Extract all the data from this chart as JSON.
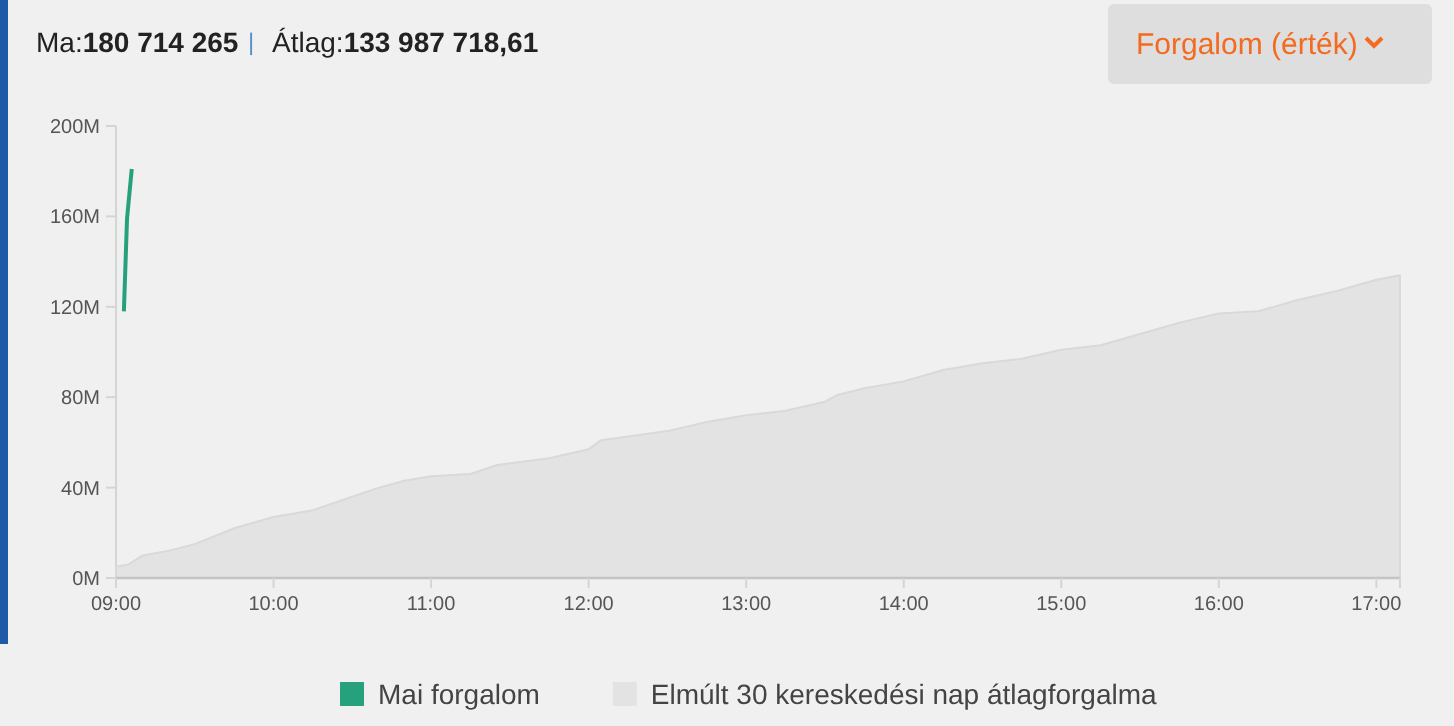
{
  "chart_data": {
    "type": "line",
    "annotations": [
      "Ma:180 714 265",
      "|",
      "Átlag:133 987 718,61",
      "Forgalom (érték)"
    ],
    "xlim": [
      9,
      17.15
    ],
    "xticks": [
      {
        "value": 9,
        "label": "09:00"
      },
      {
        "value": 10,
        "label": "10:00"
      },
      {
        "value": 11,
        "label": "11:00"
      },
      {
        "value": 12,
        "label": "12:00"
      },
      {
        "value": 13,
        "label": "13:00"
      },
      {
        "value": 14,
        "label": "14:00"
      },
      {
        "value": 15,
        "label": "15:00"
      },
      {
        "value": 16,
        "label": "16:00"
      },
      {
        "value": 17,
        "label": "17:00"
      },
      {
        "value": 17.15,
        "label": null
      }
    ],
    "ylim": [
      0,
      200
    ],
    "yticks": [
      {
        "value": 0,
        "label": "0M"
      },
      {
        "value": 40,
        "label": "40M"
      },
      {
        "value": 80,
        "label": "80M"
      },
      {
        "value": 120,
        "label": "120M"
      },
      {
        "value": 160,
        "label": "160M"
      },
      {
        "value": 200,
        "label": "200M"
      }
    ],
    "grid": false,
    "legend": "bottom",
    "marker": "none",
    "line_style": "solid",
    "series": [
      {
        "name": "Mai forgalom",
        "color": "#26a17b",
        "x": [
          9.05,
          9.07,
          9.1
        ],
        "values": [
          118,
          159,
          181
        ]
      },
      {
        "name": "Elmúlt 30 kereskedési nap átlagforgalma",
        "color": "#e3e3e3",
        "type": "area",
        "x": [
          9,
          9.08,
          9.17,
          9.33,
          9.5,
          9.75,
          10,
          10.25,
          10.5,
          10.67,
          10.83,
          11,
          11.25,
          11.42,
          11.75,
          12,
          12.08,
          12.5,
          12.75,
          13,
          13.25,
          13.5,
          13.58,
          13.75,
          14,
          14.25,
          14.5,
          14.75,
          15,
          15.25,
          15.5,
          15.75,
          16,
          16.25,
          16.5,
          16.75,
          17,
          17.15
        ],
        "values": [
          5,
          6,
          10,
          12,
          15,
          22,
          27,
          30,
          36,
          40,
          43,
          45,
          46,
          50,
          53,
          57,
          61,
          65,
          69,
          72,
          74,
          78,
          81,
          84,
          87,
          92,
          95,
          97,
          101,
          103,
          108,
          113,
          117,
          118,
          123,
          127,
          132,
          134
        ]
      }
    ]
  }
}
